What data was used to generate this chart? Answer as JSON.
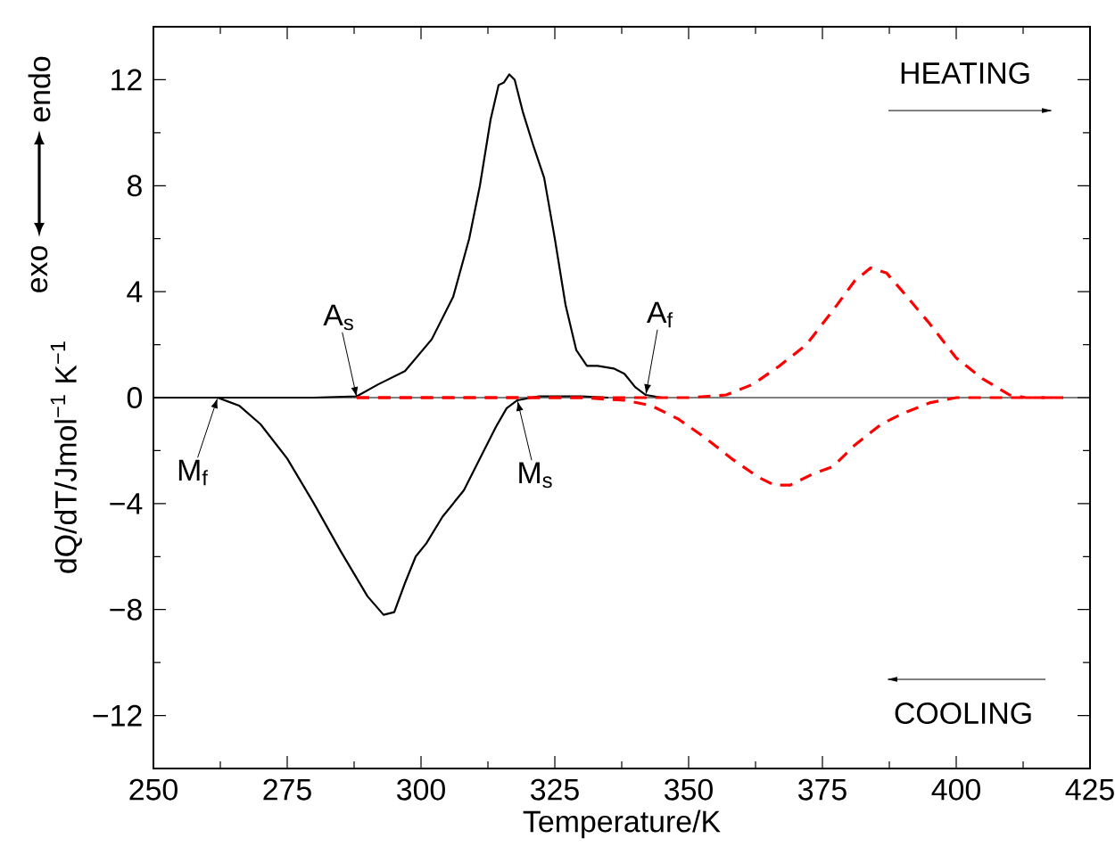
{
  "chart_data": {
    "type": "line",
    "xlabel": "Temperature/K",
    "ylabel": "dQ/dT/Jmol$^{−1}$ K$^{−1}$",
    "xlim": [
      250,
      425
    ],
    "ylim": [
      -14,
      14
    ],
    "xticks": [
      250,
      275,
      300,
      325,
      350,
      375,
      400,
      425
    ],
    "yticks": [
      {
        "value": -12,
        "label": "−12"
      },
      {
        "value": -8,
        "label": "−8"
      },
      {
        "value": -4,
        "label": "−4"
      },
      0,
      4,
      8,
      12
    ],
    "series": [
      {
        "color": "#000000",
        "line_style": "solid",
        "x": [
          250,
          280,
          288,
          292,
          297,
          302,
          306,
          309,
          311,
          313,
          314.5,
          315.5,
          316.5,
          317.5,
          319,
          321,
          323,
          325,
          327,
          329,
          331,
          333,
          336,
          338,
          340,
          342,
          345
        ],
        "values": [
          0,
          0,
          0.05,
          0.5,
          1.0,
          2.2,
          3.8,
          6.0,
          8.0,
          10.5,
          11.8,
          11.9,
          12.2,
          12.0,
          10.8,
          9.5,
          8.3,
          6.0,
          3.5,
          1.8,
          1.2,
          1.2,
          1.1,
          0.9,
          0.4,
          0.1,
          0
        ]
      },
      {
        "color": "#000000",
        "line_style": "solid",
        "x": [
          250,
          262,
          266,
          270,
          275,
          280,
          285,
          290,
          293,
          295,
          297,
          299,
          301,
          304,
          308,
          311,
          314,
          316,
          318,
          322,
          330,
          335
        ],
        "values": [
          0,
          0,
          -0.3,
          -1.0,
          -2.3,
          -4.0,
          -5.8,
          -7.5,
          -8.2,
          -8.1,
          -7.0,
          -6.0,
          -5.5,
          -4.5,
          -3.5,
          -2.3,
          -1.1,
          -0.4,
          -0.1,
          0.05,
          0.05,
          0
        ]
      },
      {
        "color": "#ff0000",
        "line_style": "dashed",
        "x": [
          288,
          350,
          357,
          362,
          367,
          372,
          377,
          381,
          384,
          387,
          390,
          395,
          400,
          405,
          410,
          413,
          420
        ],
        "values": [
          0,
          0,
          0.1,
          0.5,
          1.2,
          2.0,
          3.3,
          4.4,
          4.9,
          4.7,
          4.0,
          2.8,
          1.5,
          0.7,
          0.1,
          0,
          0
        ]
      },
      {
        "color": "#ff0000",
        "line_style": "dashed",
        "x": [
          288,
          330,
          338,
          343,
          348,
          353,
          358,
          363,
          366,
          369,
          373,
          377,
          381,
          386,
          390,
          395,
          400,
          420
        ],
        "values": [
          0,
          0,
          -0.1,
          -0.3,
          -0.8,
          -1.5,
          -2.3,
          -3.0,
          -3.3,
          -3.3,
          -2.9,
          -2.6,
          -1.8,
          -1.0,
          -0.6,
          -0.2,
          0,
          0
        ]
      }
    ],
    "ref_lines": [
      {
        "axis": "y",
        "value": 0,
        "color": "#000000"
      }
    ],
    "annotations": [
      {
        "text": "A$_{s}$",
        "x": 288,
        "y": 0
      },
      {
        "text": "A$_{f}$",
        "x": 342,
        "y": 0.1
      },
      {
        "text": "M$_{s}$",
        "x": 318,
        "y": -0.1
      },
      {
        "text": "M$_{f}$",
        "x": 262,
        "y": 0
      },
      "HEATING",
      "COOLING",
      "endo",
      "exo"
    ]
  }
}
